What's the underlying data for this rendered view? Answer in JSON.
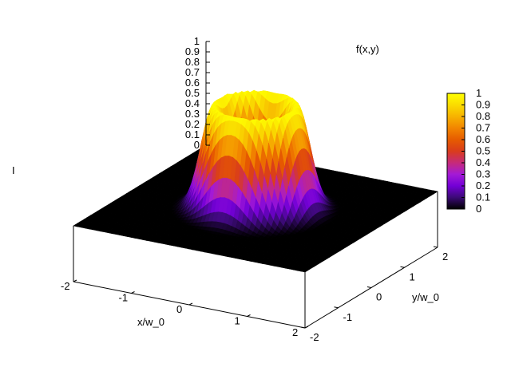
{
  "chart_data": {
    "type": "surface3d",
    "title": "f(x,y)",
    "xlabel": "x/w_0",
    "ylabel": "y/w_0",
    "zlabel": "I",
    "x_range": [
      -2,
      2
    ],
    "y_range": [
      -2,
      2
    ],
    "z_range": [
      0,
      1
    ],
    "x_ticks": [
      "-2",
      "-1",
      "0",
      "1",
      "2"
    ],
    "y_ticks": [
      "-2",
      "-1",
      "0",
      "1",
      "2"
    ],
    "z_ticks": [
      "0",
      "0.1",
      "0.2",
      "0.3",
      "0.4",
      "0.5",
      "0.6",
      "0.7",
      "0.8",
      "0.9",
      "1"
    ],
    "colorbar": {
      "ticks": [
        "0",
        "0.1",
        "0.2",
        "0.3",
        "0.4",
        "0.5",
        "0.6",
        "0.7",
        "0.8",
        "0.9",
        "1"
      ],
      "palette": [
        "#000000",
        "#3b0a75",
        "#7300d6",
        "#a31ad6",
        "#c62a7a",
        "#d93c1c",
        "#e65b00",
        "#f28500",
        "#f7b200",
        "#fadc00",
        "#ffff00"
      ]
    },
    "function": "doughnut-shaped intensity ring, peak 1 at radius ~0.6 w_0, near 0 at center and beyond radius ~1.3 w_0"
  }
}
